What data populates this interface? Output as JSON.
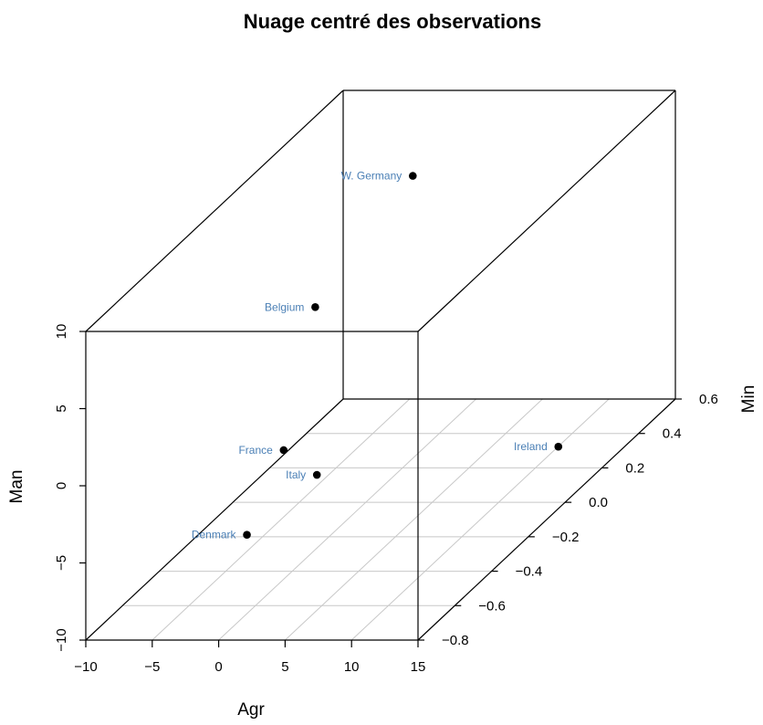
{
  "chart_data": {
    "type": "scatter",
    "projection": "3d",
    "title": "Nuage centré des observations",
    "xlabel": "Agr",
    "ylabel": "Min",
    "zlabel": "Man",
    "xlim": [
      -10,
      15
    ],
    "ylim": [
      -0.8,
      0.6
    ],
    "zlim": [
      -10,
      10
    ],
    "x_ticks": [
      -10,
      -5,
      0,
      5,
      10,
      15
    ],
    "y_ticks": [
      -0.8,
      -0.6,
      -0.4,
      -0.2,
      0.0,
      0.2,
      0.4,
      0.6
    ],
    "z_ticks": [
      -10,
      -5,
      0,
      5,
      10
    ],
    "x_tick_labels": [
      "−10",
      "−5",
      "0",
      "5",
      "10",
      "15"
    ],
    "y_tick_labels": [
      "−0.8",
      "−0.6",
      "−0.4",
      "−0.2",
      "0.0",
      "0.2",
      "0.4",
      "0.6"
    ],
    "z_tick_labels": [
      "−10",
      "−5",
      "0",
      "5",
      "10"
    ],
    "grid": "bottom plane",
    "point_color": "#000000",
    "label_color": "#4a7fb5",
    "points": [
      {
        "label": "W. Germany",
        "x": -3.1,
        "y": 0.48,
        "z": 5.8
      },
      {
        "label": "Belgium",
        "x": -5.6,
        "y": 0.13,
        "z": 1.2
      },
      {
        "label": "France",
        "x": 2.4,
        "y": -0.62,
        "z": 0.3
      },
      {
        "label": "Italy",
        "x": 4.9,
        "y": -0.62,
        "z": -1.3
      },
      {
        "label": "Ireland",
        "x": 15.6,
        "y": -0.08,
        "z": -5.5
      },
      {
        "label": "Denmark",
        "x": -4.1,
        "y": -0.35,
        "z": -8.2
      }
    ]
  }
}
